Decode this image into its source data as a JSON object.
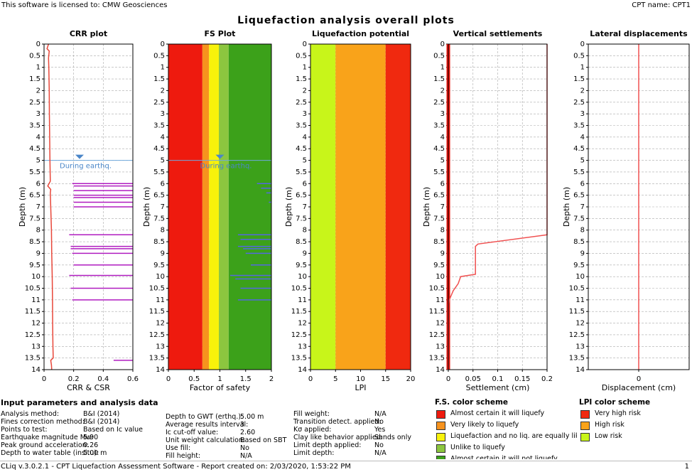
{
  "header": {
    "license": "This software is licensed to: CMW Geosciences",
    "cpt_name": "CPT name: CPT1"
  },
  "title": "Liquefaction analysis overall plots",
  "chart_data": [
    {
      "type": "line",
      "title": "CRR plot",
      "x_label": "CRR & CSR",
      "y_label": "Depth (m)",
      "xlim": [
        0,
        0.6
      ],
      "xticks": [
        0,
        0.2,
        0.4,
        0.6
      ],
      "ylim": [
        0,
        14
      ],
      "yticks": [
        0,
        0.5,
        1,
        1.5,
        2,
        2.5,
        3,
        3.5,
        4,
        4.5,
        5,
        5.5,
        6,
        6.5,
        7,
        7.5,
        8,
        8.5,
        9,
        9.5,
        10,
        10.5,
        11,
        11.5,
        12,
        12.5,
        13,
        13.5,
        14
      ],
      "grid": true,
      "water_table": {
        "depth": 5,
        "label": "During earthq."
      },
      "series": [
        {
          "color": "#e8473a",
          "width": 1.5,
          "depth": [
            0,
            0.2,
            0.3,
            0.6,
            1,
            2,
            3,
            4,
            5,
            5.9,
            6.1,
            6.25,
            6.4,
            7,
            8,
            9,
            10,
            11,
            12,
            13,
            13.5,
            13.6,
            13.8,
            14
          ],
          "values": [
            0.03,
            0.02,
            0.035,
            0.03,
            0.032,
            0.035,
            0.036,
            0.038,
            0.04,
            0.042,
            0.025,
            0.045,
            0.042,
            0.045,
            0.05,
            0.052,
            0.055,
            0.057,
            0.058,
            0.06,
            0.062,
            0.045,
            0.05,
            0.052
          ]
        },
        {
          "color": "#b01cc0",
          "width": 1.5,
          "depth": [
            6.0,
            6.0,
            null,
            6.1,
            6.1,
            null,
            6.3,
            6.3,
            null,
            6.5,
            6.5,
            null,
            6.6,
            6.6,
            null,
            6.8,
            6.8,
            null,
            7.0,
            7.0,
            null,
            8.2,
            8.2,
            null,
            8.7,
            8.7,
            null,
            8.8,
            8.8,
            null,
            9.0,
            9.0,
            null,
            9.5,
            9.5,
            null,
            9.95,
            9.95,
            null,
            10.5,
            10.5,
            null,
            11.0,
            11.0,
            null,
            13.6,
            13.6
          ],
          "values": [
            0.19,
            0.6,
            null,
            0.2,
            0.6,
            null,
            0.2,
            0.6,
            null,
            0.2,
            0.6,
            null,
            0.2,
            0.6,
            null,
            0.2,
            0.6,
            null,
            0.2,
            0.6,
            null,
            0.17,
            0.6,
            null,
            0.18,
            0.6,
            null,
            0.18,
            0.6,
            null,
            0.19,
            0.6,
            null,
            0.2,
            0.6,
            null,
            0.17,
            0.6,
            null,
            0.18,
            0.6,
            null,
            0.19,
            0.6,
            null,
            0.47,
            0.6
          ]
        }
      ]
    },
    {
      "type": "line",
      "title": "FS Plot",
      "x_label": "Factor of safety",
      "y_label": "Depth (m)",
      "xlim": [
        0,
        2
      ],
      "xticks": [
        0,
        0.5,
        1,
        1.5,
        2
      ],
      "ylim": [
        0,
        14
      ],
      "yticks": [
        0,
        0.5,
        1,
        1.5,
        2,
        2.5,
        3,
        3.5,
        4,
        4.5,
        5,
        5.5,
        6,
        6.5,
        7,
        7.5,
        8,
        8.5,
        9,
        9.5,
        10,
        10.5,
        11,
        11.5,
        12,
        12.5,
        13,
        13.5,
        14
      ],
      "grid": true,
      "bands": [
        {
          "from": 0,
          "to": 0.66,
          "color": "#ee1a0e"
        },
        {
          "from": 0.66,
          "to": 0.79,
          "color": "#f7931e"
        },
        {
          "from": 0.79,
          "to": 0.98,
          "color": "#f8f20b"
        },
        {
          "from": 0.98,
          "to": 1.17,
          "color": "#8cc63f"
        },
        {
          "from": 1.17,
          "to": 2,
          "color": "#3ca11a"
        }
      ],
      "water_table": {
        "depth": 5,
        "label": "During earthq."
      },
      "series": [
        {
          "color": "#5368e0",
          "width": 1.5,
          "depth": [
            6.0,
            6.0,
            null,
            6.2,
            6.2,
            null,
            6.4,
            6.4,
            null,
            6.8,
            6.8,
            null,
            8.2,
            8.2,
            null,
            8.4,
            8.4,
            null,
            8.7,
            8.7,
            null,
            8.8,
            8.8,
            null,
            9.0,
            9.0,
            null,
            9.5,
            9.5,
            null,
            9.95,
            9.95,
            null,
            10.1,
            10.1,
            null,
            10.5,
            10.5,
            null,
            11.0,
            11.0
          ],
          "values": [
            1.72,
            2,
            null,
            1.8,
            2,
            null,
            1.9,
            2,
            null,
            1.95,
            2,
            null,
            1.35,
            2,
            null,
            1.4,
            2,
            null,
            1.35,
            2,
            null,
            1.45,
            2,
            null,
            1.5,
            2,
            null,
            1.6,
            2,
            null,
            1.2,
            2,
            null,
            1.3,
            2,
            null,
            1.4,
            2,
            null,
            1.35,
            2
          ]
        }
      ]
    },
    {
      "type": "line",
      "title": "Liquefaction potential",
      "x_label": "LPI",
      "y_label": "Depth (m)",
      "xlim": [
        0,
        20
      ],
      "xticks": [
        0,
        5,
        10,
        15,
        20
      ],
      "ylim": [
        0,
        14
      ],
      "yticks": [
        0,
        0.5,
        1,
        1.5,
        2,
        2.5,
        3,
        3.5,
        4,
        4.5,
        5,
        5.5,
        6,
        6.5,
        7,
        7.5,
        8,
        8.5,
        9,
        9.5,
        10,
        10.5,
        11,
        11.5,
        12,
        12.5,
        13,
        13.5,
        14
      ],
      "grid": true,
      "bands": [
        {
          "from": 0,
          "to": 5,
          "color": "#c8f51a"
        },
        {
          "from": 5,
          "to": 15,
          "color": "#f9a31a"
        },
        {
          "from": 15,
          "to": 20,
          "color": "#f0290f"
        }
      ],
      "series": []
    },
    {
      "type": "line",
      "title": "Vertical settlements",
      "x_label": "Settlement (cm)",
      "y_label": "Depth (m)",
      "xlim": [
        0,
        0.2
      ],
      "xticks": [
        0,
        0.05,
        0.1,
        0.15,
        0.2
      ],
      "ylim": [
        0,
        14
      ],
      "yticks": [
        0,
        0.5,
        1,
        1.5,
        2,
        2.5,
        3,
        3.5,
        4,
        4.5,
        5,
        5.5,
        6,
        6.5,
        7,
        7.5,
        8,
        8.5,
        9,
        9.5,
        10,
        10.5,
        11,
        11.5,
        12,
        12.5,
        13,
        13.5,
        14
      ],
      "grid": true,
      "series": [
        {
          "color": "#e8140c",
          "width": 5,
          "depth": [
            0,
            14
          ],
          "values": [
            0,
            0
          ]
        },
        {
          "color": "#f05050",
          "width": 1.5,
          "depth": [
            0,
            8.2,
            8.6,
            8.7,
            9.9,
            10.0,
            10.3,
            10.6,
            10.8,
            11.0,
            11.2,
            14
          ],
          "values": [
            0.2,
            0.2,
            0.06,
            0.055,
            0.055,
            0.025,
            0.02,
            0.01,
            0.006,
            0.002,
            0,
            0
          ]
        }
      ]
    },
    {
      "type": "line",
      "title": "Lateral displacements",
      "x_label": "Displacement (cm)",
      "y_label": "Depth (m)",
      "xlim": [
        -1,
        1
      ],
      "xticks": [
        0
      ],
      "ylim": [
        0,
        14
      ],
      "yticks": [
        0,
        0.5,
        1,
        1.5,
        2,
        2.5,
        3,
        3.5,
        4,
        4.5,
        5,
        5.5,
        6,
        6.5,
        7,
        7.5,
        8,
        8.5,
        9,
        9.5,
        10,
        10.5,
        11,
        11.5,
        12,
        12.5,
        13,
        13.5,
        14
      ],
      "grid": true,
      "series": [
        {
          "color": "#f05050",
          "width": 1.5,
          "depth": [
            0,
            14
          ],
          "values": [
            0,
            0
          ]
        }
      ]
    }
  ],
  "inputs": {
    "title": "Input parameters and analysis data",
    "columns": [
      [
        [
          "Analysis method:",
          "B&I (2014)"
        ],
        [
          "Fines correction method:",
          "B&I (2014)"
        ],
        [
          "Points to test:",
          "Based on Ic value"
        ],
        [
          "Earthquake magnitude Mw:",
          "5.90"
        ],
        [
          "Peak ground acceleration:",
          "0.26"
        ],
        [
          "Depth to water table (insitu):",
          "5.00 m"
        ]
      ],
      [
        [
          "Depth to GWT (erthq.):",
          "5.00 m"
        ],
        [
          "Average results interval:",
          "3"
        ],
        [
          "Ic cut-off value:",
          "2.60"
        ],
        [
          "Unit weight calculation:",
          "Based on SBT"
        ],
        [
          "Use fill:",
          "No"
        ],
        [
          "Fill height:",
          "N/A"
        ]
      ],
      [
        [
          "Fill weight:",
          "N/A"
        ],
        [
          "Transition detect. applied:",
          "No"
        ],
        [
          "Kσ applied:",
          "Yes"
        ],
        [
          "Clay like behavior applied:",
          "Sands only"
        ],
        [
          "Limit depth applied:",
          "No"
        ],
        [
          "Limit depth:",
          "N/A"
        ]
      ]
    ]
  },
  "fs_scheme": {
    "title": "F.S. color scheme",
    "items": [
      {
        "label": "Almost certain it will liquefy",
        "color": "#ee1a0e"
      },
      {
        "label": "Very likely to liquefy",
        "color": "#f7931e"
      },
      {
        "label": "Liquefaction and no liq. are equally likely",
        "color": "#f8f20b"
      },
      {
        "label": "Unlike to liquefy",
        "color": "#8cc63f"
      },
      {
        "label": "Almost certain it will not liquefy",
        "color": "#3ca11a"
      }
    ]
  },
  "lpi_scheme": {
    "title": "LPI color scheme",
    "items": [
      {
        "label": "Very high risk",
        "color": "#f0290f"
      },
      {
        "label": "High risk",
        "color": "#f9a31a"
      },
      {
        "label": "Low risk",
        "color": "#c8f51a"
      }
    ]
  },
  "footer": {
    "text": "CLiq v.3.0.2.1 - CPT Liquefaction Assessment Software - Report created on: 2/03/2020, 1:53:22 PM",
    "page": "1"
  }
}
